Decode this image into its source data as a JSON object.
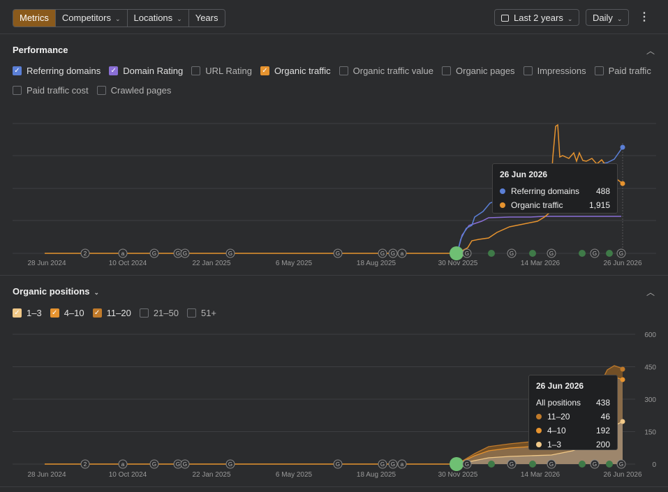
{
  "toolbar": {
    "tabs": [
      {
        "label": "Metrics",
        "active": true,
        "dropdown": false
      },
      {
        "label": "Competitors",
        "active": false,
        "dropdown": true
      },
      {
        "label": "Locations",
        "active": false,
        "dropdown": true
      },
      {
        "label": "Years",
        "active": false,
        "dropdown": false
      }
    ],
    "date_range_label": "Last 2 years",
    "granularity_label": "Daily",
    "more_icon": "kebab-menu-icon"
  },
  "performance": {
    "title": "Performance",
    "metrics": [
      {
        "label": "Referring domains",
        "checked": true,
        "color": "#5b7fd6"
      },
      {
        "label": "Domain Rating",
        "checked": true,
        "color": "#8a6fd6"
      },
      {
        "label": "URL Rating",
        "checked": false
      },
      {
        "label": "Organic traffic",
        "checked": true,
        "color": "#e6932f"
      },
      {
        "label": "Organic traffic value",
        "checked": false
      },
      {
        "label": "Organic pages",
        "checked": false
      },
      {
        "label": "Impressions",
        "checked": false
      },
      {
        "label": "Paid traffic",
        "checked": false
      },
      {
        "label": "Paid traffic cost",
        "checked": false
      },
      {
        "label": "Crawled pages",
        "checked": false
      }
    ],
    "x_ticks": [
      "28 Jun 2024",
      "10 Oct 2024",
      "22 Jan 2025",
      "6 May 2025",
      "18 Aug 2025",
      "30 Nov 2025",
      "14 Mar 2026",
      "26 Jun 2026"
    ],
    "tooltip": {
      "date": "26 Jun 2026",
      "rows": [
        {
          "label": "Referring domains",
          "value": "488",
          "color": "#5b7fd6"
        },
        {
          "label": "Organic traffic",
          "value": "1,915",
          "color": "#e6932f"
        }
      ]
    }
  },
  "positions": {
    "title": "Organic positions",
    "ranges": [
      {
        "label": "1–3",
        "checked": true,
        "color": "#f0c888"
      },
      {
        "label": "4–10",
        "checked": true,
        "color": "#e6932f"
      },
      {
        "label": "11–20",
        "checked": true,
        "color": "#c07a2a"
      },
      {
        "label": "21–50",
        "checked": false
      },
      {
        "label": "51+",
        "checked": false
      }
    ],
    "y_ticks": [
      "600",
      "450",
      "300",
      "150",
      "0"
    ],
    "x_ticks": [
      "28 Jun 2024",
      "10 Oct 2024",
      "22 Jan 2025",
      "6 May 2025",
      "18 Aug 2025",
      "30 Nov 2025",
      "14 Mar 2026",
      "26 Jun 2026"
    ],
    "tooltip": {
      "date": "26 Jun 2026",
      "total_label": "All positions",
      "total_value": "438",
      "rows": [
        {
          "label": "11–20",
          "value": "46",
          "color": "#c07a2a"
        },
        {
          "label": "4–10",
          "value": "192",
          "color": "#e6932f"
        },
        {
          "label": "1–3",
          "value": "200",
          "color": "#f0c888"
        }
      ]
    }
  },
  "chart_data": [
    {
      "type": "line",
      "title": "Performance",
      "x": [
        "28 Jun 2024",
        "10 Oct 2024",
        "22 Jan 2025",
        "6 May 2025",
        "18 Aug 2025",
        "30 Nov 2025",
        "14 Mar 2026",
        "26 Jun 2026"
      ],
      "series": [
        {
          "name": "Referring domains",
          "color": "#5b7fd6",
          "values": [
            0,
            0,
            0,
            0,
            0,
            null,
            null,
            488
          ]
        },
        {
          "name": "Organic traffic",
          "color": "#e6932f",
          "values": [
            0,
            0,
            0,
            0,
            0,
            null,
            null,
            1915
          ]
        }
      ],
      "grid": true
    },
    {
      "type": "area",
      "title": "Organic positions",
      "x": [
        "28 Jun 2024",
        "10 Oct 2024",
        "22 Jan 2025",
        "6 May 2025",
        "18 Aug 2025",
        "30 Nov 2025",
        "14 Mar 2026",
        "26 Jun 2026"
      ],
      "series": [
        {
          "name": "1–3",
          "color": "#f0c888",
          "values": [
            0,
            0,
            0,
            0,
            0,
            0,
            null,
            200
          ]
        },
        {
          "name": "4–10",
          "color": "#e6932f",
          "values": [
            0,
            0,
            0,
            0,
            0,
            0,
            null,
            192
          ]
        },
        {
          "name": "11–20",
          "color": "#c07a2a",
          "values": [
            0,
            0,
            0,
            0,
            0,
            0,
            null,
            46
          ]
        }
      ],
      "ylim": [
        0,
        600
      ],
      "grid": true
    }
  ]
}
